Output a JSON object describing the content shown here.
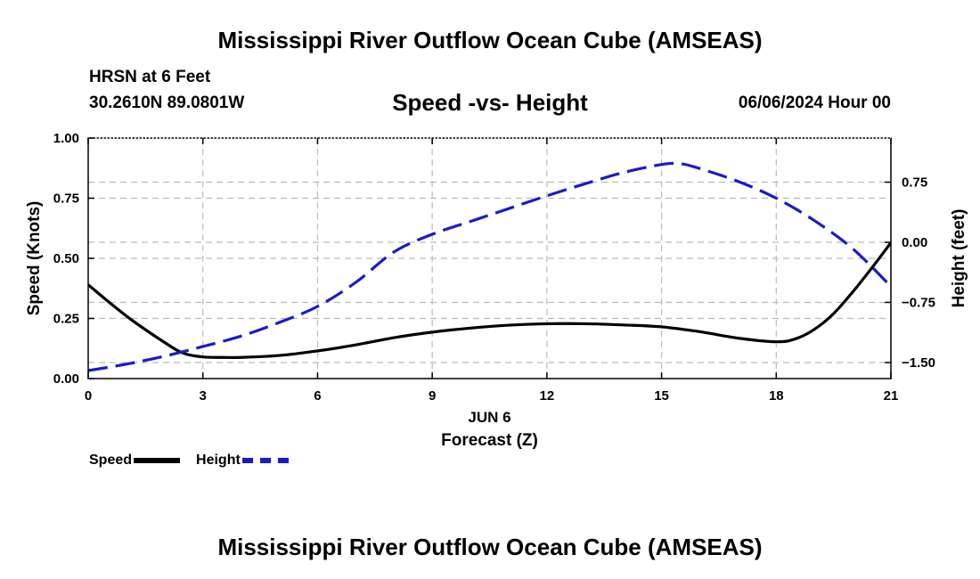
{
  "header": {
    "title": "Mississippi River Outflow Ocean Cube (AMSEAS)",
    "station": "HRSN at 6 Feet",
    "coordinates": "30.2610N  89.0801W",
    "subtitle": "Speed -vs- Height",
    "datetime": "06/06/2024 Hour 00"
  },
  "footer": {
    "title": "Mississippi River Outflow Ocean Cube (AMSEAS)"
  },
  "legend": {
    "speed_label": "Speed",
    "height_label": "Height"
  },
  "colors": {
    "speed": "#000000",
    "height": "#1a1acc",
    "grid": "#bbbbbb"
  },
  "chart_data": {
    "type": "line",
    "title": "Speed -vs- Height",
    "xlabel": "Forecast (Z)",
    "xlabel_date": "JUN 6",
    "ylabel": "Speed (Knots)",
    "y2label": "Height (feet)",
    "xlim": [
      0,
      21
    ],
    "ylim": [
      0,
      1
    ],
    "y2lim": [
      -1.7,
      1.3
    ],
    "xticks": [
      0,
      3,
      6,
      9,
      12,
      15,
      18,
      21
    ],
    "xtick_labels": [
      "0",
      "3",
      "6",
      "9",
      "12",
      "15",
      "18",
      "21"
    ],
    "yticks": [
      0,
      0.25,
      0.5,
      0.75,
      1.0
    ],
    "ytick_labels": [
      "0.00",
      "0.25",
      "0.50",
      "0.75",
      "1.00"
    ],
    "y2ticks": [
      0.75,
      0,
      -0.75,
      -1.5
    ],
    "y2tick_labels": [
      "0.75",
      "0.00",
      "−0.75",
      "−1.50"
    ],
    "grid": true,
    "series": [
      {
        "name": "Speed",
        "axis": "left",
        "style": "solid",
        "x": [
          0,
          1,
          2,
          2.5,
          3,
          3.5,
          4,
          5,
          6,
          7,
          8,
          9,
          10,
          11,
          12,
          13,
          14,
          15,
          16,
          17,
          18,
          18.5,
          19,
          19.5,
          20,
          20.5,
          21
        ],
        "values": [
          0.39,
          0.26,
          0.15,
          0.105,
          0.09,
          0.088,
          0.088,
          0.096,
          0.115,
          0.14,
          0.17,
          0.193,
          0.21,
          0.222,
          0.228,
          0.228,
          0.223,
          0.215,
          0.195,
          0.168,
          0.153,
          0.165,
          0.205,
          0.27,
          0.36,
          0.46,
          0.565
        ]
      },
      {
        "name": "Height",
        "axis": "right",
        "style": "dashed",
        "x": [
          0,
          1,
          2,
          3,
          4,
          5,
          6,
          7,
          8,
          9,
          10,
          11,
          12,
          13,
          14,
          15,
          15.5,
          16,
          17,
          18,
          19,
          20,
          21
        ],
        "values": [
          -1.6,
          -1.52,
          -1.42,
          -1.3,
          -1.17,
          -1.0,
          -0.8,
          -0.5,
          -0.12,
          0.1,
          0.26,
          0.42,
          0.58,
          0.73,
          0.87,
          0.97,
          0.98,
          0.92,
          0.76,
          0.55,
          0.27,
          -0.08,
          -0.55
        ]
      }
    ]
  }
}
